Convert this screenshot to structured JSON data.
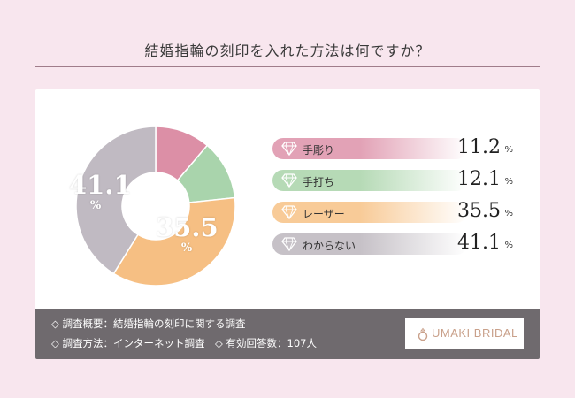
{
  "title": "結婚指輪の刻印を入れた方法は何ですか？",
  "chart_data": {
    "type": "pie",
    "categories": [
      "手彫り",
      "手打ち",
      "レーザー",
      "わからない"
    ],
    "values": [
      11.2,
      12.1,
      35.5,
      41.1
    ],
    "unit": "%",
    "colors": [
      "#dc8fa6",
      "#a9d4ac",
      "#f6bf83",
      "#c0bac2"
    ],
    "pill_colors": [
      "#e2a2b6",
      "#b6dab6",
      "#f8cb98",
      "#c6c1c7"
    ],
    "big_labels": [
      {
        "value": "35.5",
        "unit": "%"
      },
      {
        "value": "41.1",
        "unit": "%"
      }
    ]
  },
  "footer": {
    "line1": "◇ 調査概要：結婚指輪の刻印に関する調査",
    "line2": "◇ 調査方法：インターネット調査　◇ 有効回答数：107人"
  },
  "logo": {
    "text": "UMAKI BRIDAL",
    "icon": "ring-icon"
  }
}
